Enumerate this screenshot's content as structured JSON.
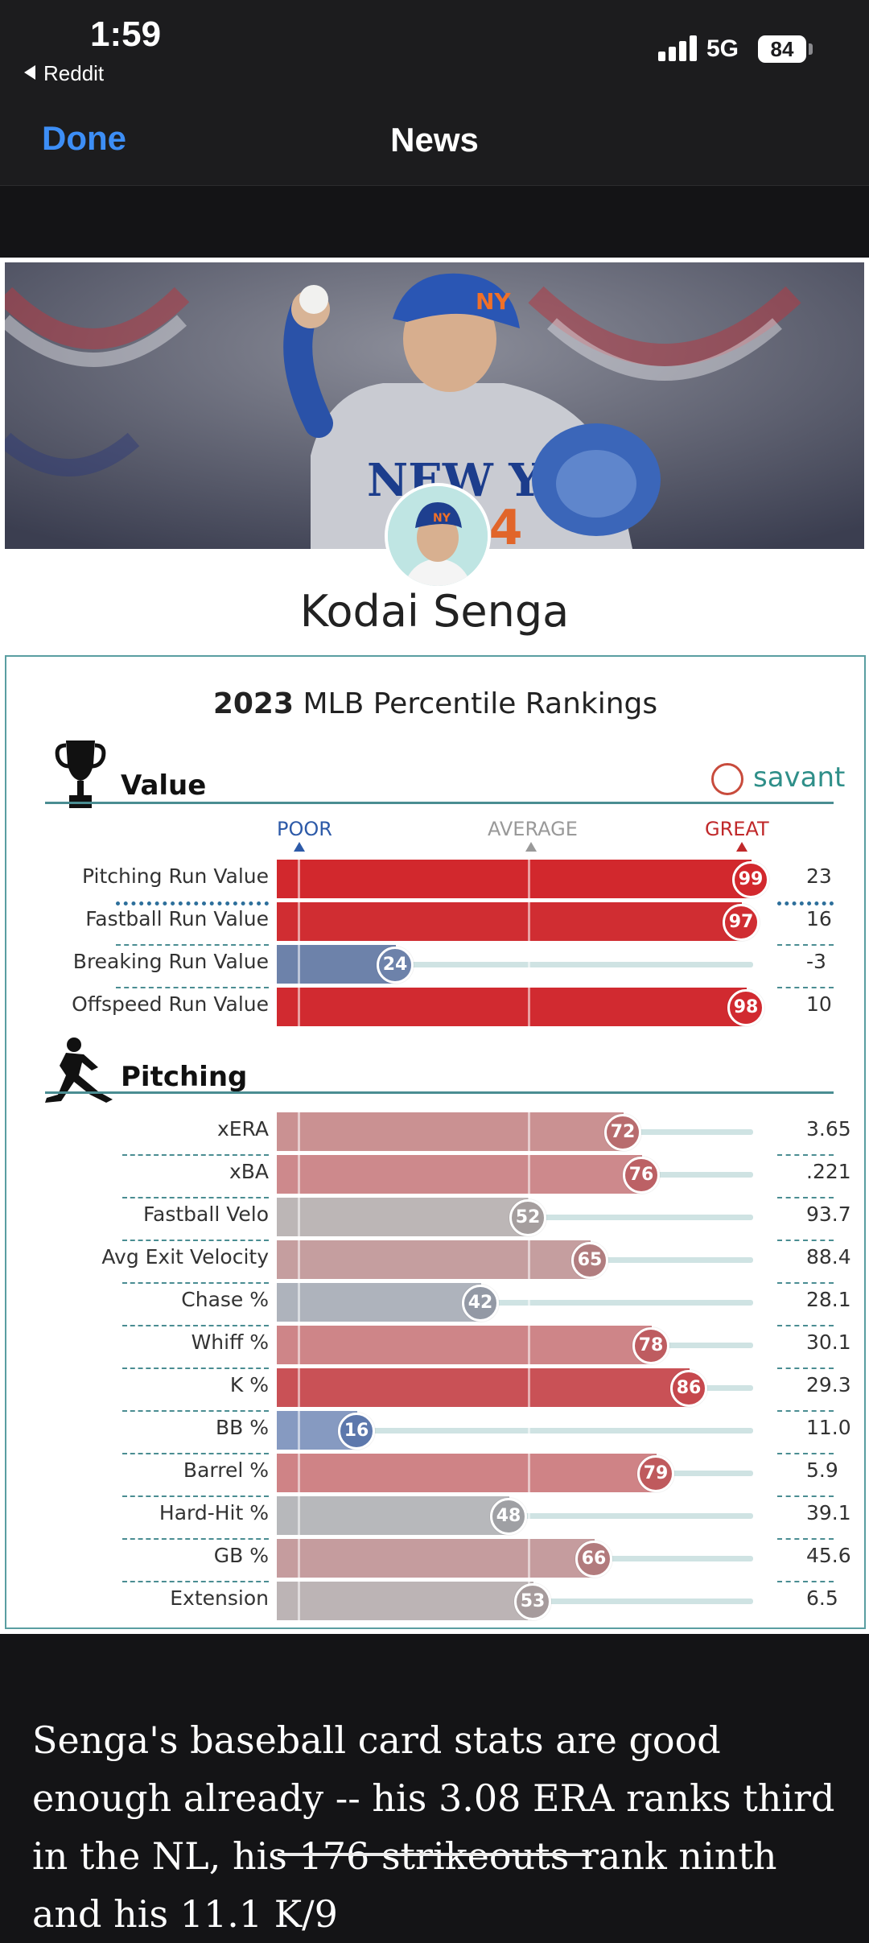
{
  "status_bar": {
    "time": "1:59",
    "back_app": "Reddit",
    "network": "5G",
    "battery": "84"
  },
  "nav": {
    "done_label": "Done",
    "title": "News"
  },
  "card": {
    "player_name": "Kodai Senga",
    "rankings_year": "2023",
    "rankings_title": "MLB Percentile Rankings",
    "brand": "savant",
    "scale": {
      "poor": "POOR",
      "average": "AVERAGE",
      "great": "GREAT"
    },
    "sections": [
      {
        "title": "Value",
        "icon": "trophy-icon",
        "rows": [
          {
            "label": "Pitching Run Value",
            "percentile": 99,
            "value": "23"
          },
          {
            "label": "Fastball Run Value",
            "percentile": 97,
            "value": "16"
          },
          {
            "label": "Breaking Run Value",
            "percentile": 24,
            "value": "-3"
          },
          {
            "label": "Offspeed Run Value",
            "percentile": 98,
            "value": "10"
          }
        ]
      },
      {
        "title": "Pitching",
        "icon": "pitcher-icon",
        "rows": [
          {
            "label": "xERA",
            "percentile": 72,
            "value": "3.65"
          },
          {
            "label": "xBA",
            "percentile": 76,
            "value": ".221"
          },
          {
            "label": "Fastball Velo",
            "percentile": 52,
            "value": "93.7"
          },
          {
            "label": "Avg Exit Velocity",
            "percentile": 65,
            "value": "88.4"
          },
          {
            "label": "Chase %",
            "percentile": 42,
            "value": "28.1"
          },
          {
            "label": "Whiff %",
            "percentile": 78,
            "value": "30.1"
          },
          {
            "label": "K %",
            "percentile": 86,
            "value": "29.3"
          },
          {
            "label": "BB %",
            "percentile": 16,
            "value": "11.0"
          },
          {
            "label": "Barrel %",
            "percentile": 79,
            "value": "5.9"
          },
          {
            "label": "Hard-Hit %",
            "percentile": 48,
            "value": "39.1"
          },
          {
            "label": "GB %",
            "percentile": 66,
            "value": "45.6"
          },
          {
            "label": "Extension",
            "percentile": 53,
            "value": "6.5"
          }
        ]
      }
    ]
  },
  "article": {
    "text": "Senga's baseball card stats are good enough already -- his 3.08 ERA ranks third in the NL, his 176 strikeouts rank ninth and his 11.1 K/9"
  },
  "colors": {
    "great": "#d3252b",
    "poor": "#3c64b0",
    "average": "#a3a3a3",
    "accent": "#3d8ef6",
    "rule": "#4a8d92"
  }
}
